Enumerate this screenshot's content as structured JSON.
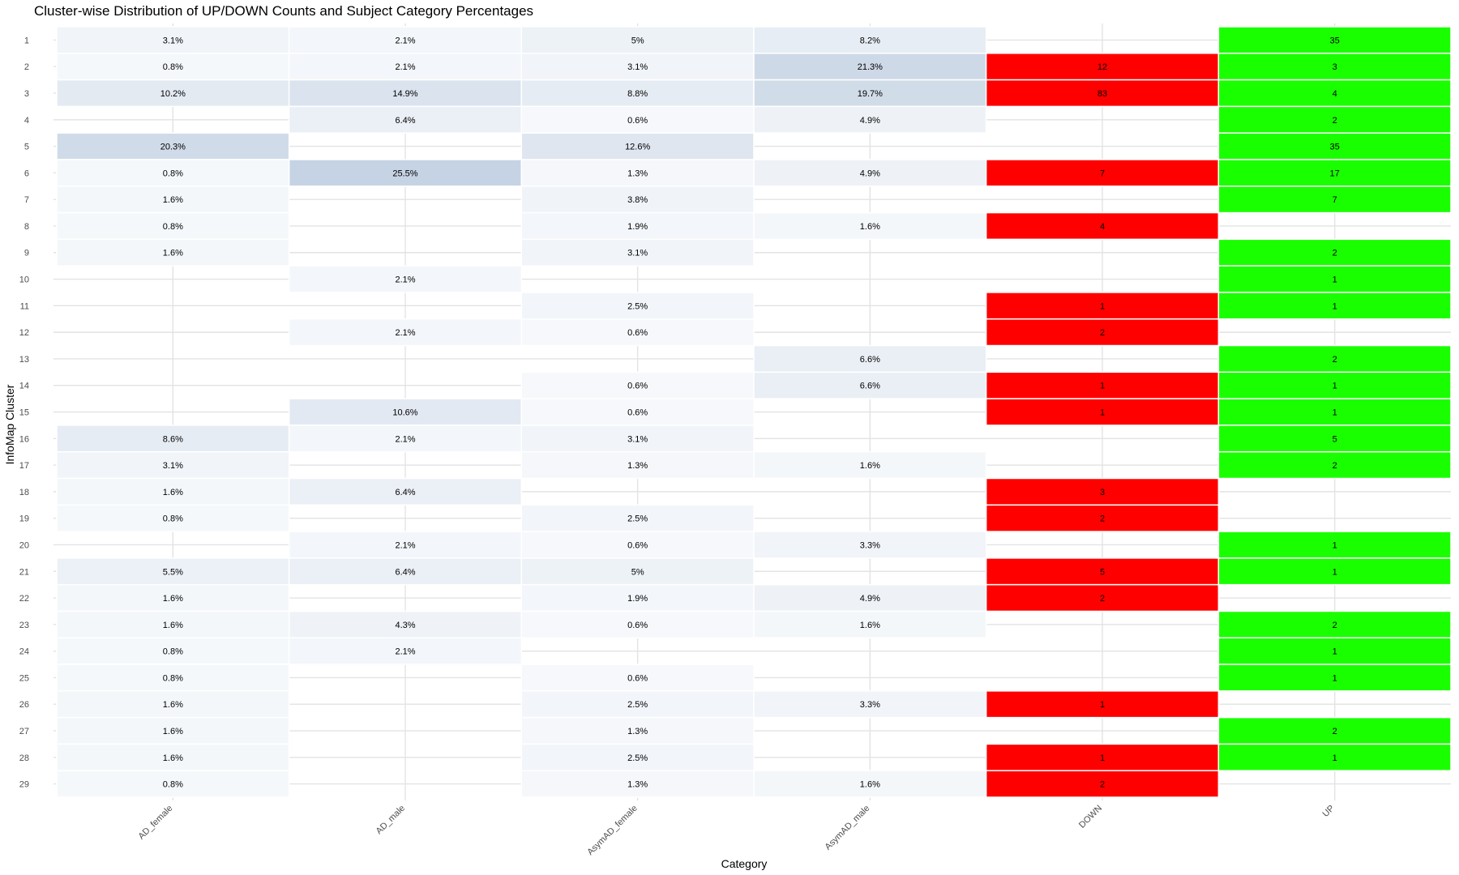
{
  "chart_data": {
    "type": "heatmap",
    "title": "Cluster-wise Distribution of UP/DOWN Counts and Subject Category Percentages",
    "xlabel": "Category",
    "ylabel": "InfoMap Cluster",
    "categories": [
      "AD_female",
      "AD_male",
      "AsymAD_female",
      "AsymAD_male",
      "DOWN",
      "UP"
    ],
    "clusters": [
      "1",
      "2",
      "3",
      "4",
      "5",
      "6",
      "7",
      "8",
      "9",
      "10",
      "11",
      "12",
      "13",
      "14",
      "15",
      "16",
      "17",
      "18",
      "19",
      "20",
      "21",
      "22",
      "23",
      "24",
      "25",
      "26",
      "27",
      "28",
      "29"
    ],
    "colors": {
      "percent_low": "#f7f9fc",
      "percent_high": "#c6d3e4",
      "down": "#ff0000",
      "up": "#1aff00",
      "grid": "#e3e3e3"
    },
    "cells": [
      {
        "cluster": "1",
        "category": "AD_female",
        "value": 3.1,
        "label": "3.1%"
      },
      {
        "cluster": "1",
        "category": "AD_male",
        "value": 2.1,
        "label": "2.1%"
      },
      {
        "cluster": "1",
        "category": "AsymAD_female",
        "value": 5,
        "label": "5%"
      },
      {
        "cluster": "1",
        "category": "AsymAD_male",
        "value": 8.2,
        "label": "8.2%"
      },
      {
        "cluster": "1",
        "category": "UP",
        "value": 35,
        "label": "35"
      },
      {
        "cluster": "2",
        "category": "AD_female",
        "value": 0.8,
        "label": "0.8%"
      },
      {
        "cluster": "2",
        "category": "AD_male",
        "value": 2.1,
        "label": "2.1%"
      },
      {
        "cluster": "2",
        "category": "AsymAD_female",
        "value": 3.1,
        "label": "3.1%"
      },
      {
        "cluster": "2",
        "category": "AsymAD_male",
        "value": 21.3,
        "label": "21.3%"
      },
      {
        "cluster": "2",
        "category": "DOWN",
        "value": 12,
        "label": "12"
      },
      {
        "cluster": "2",
        "category": "UP",
        "value": 3,
        "label": "3"
      },
      {
        "cluster": "3",
        "category": "AD_female",
        "value": 10.2,
        "label": "10.2%"
      },
      {
        "cluster": "3",
        "category": "AD_male",
        "value": 14.9,
        "label": "14.9%"
      },
      {
        "cluster": "3",
        "category": "AsymAD_female",
        "value": 8.8,
        "label": "8.8%"
      },
      {
        "cluster": "3",
        "category": "AsymAD_male",
        "value": 19.7,
        "label": "19.7%"
      },
      {
        "cluster": "3",
        "category": "DOWN",
        "value": 83,
        "label": "83"
      },
      {
        "cluster": "3",
        "category": "UP",
        "value": 4,
        "label": "4"
      },
      {
        "cluster": "4",
        "category": "AD_male",
        "value": 6.4,
        "label": "6.4%"
      },
      {
        "cluster": "4",
        "category": "AsymAD_female",
        "value": 0.6,
        "label": "0.6%"
      },
      {
        "cluster": "4",
        "category": "AsymAD_male",
        "value": 4.9,
        "label": "4.9%"
      },
      {
        "cluster": "4",
        "category": "UP",
        "value": 2,
        "label": "2"
      },
      {
        "cluster": "5",
        "category": "AD_female",
        "value": 20.3,
        "label": "20.3%"
      },
      {
        "cluster": "5",
        "category": "AsymAD_female",
        "value": 12.6,
        "label": "12.6%"
      },
      {
        "cluster": "5",
        "category": "UP",
        "value": 35,
        "label": "35"
      },
      {
        "cluster": "6",
        "category": "AD_female",
        "value": 0.8,
        "label": "0.8%"
      },
      {
        "cluster": "6",
        "category": "AD_male",
        "value": 25.5,
        "label": "25.5%"
      },
      {
        "cluster": "6",
        "category": "AsymAD_female",
        "value": 1.3,
        "label": "1.3%"
      },
      {
        "cluster": "6",
        "category": "AsymAD_male",
        "value": 4.9,
        "label": "4.9%"
      },
      {
        "cluster": "6",
        "category": "DOWN",
        "value": 7,
        "label": "7"
      },
      {
        "cluster": "6",
        "category": "UP",
        "value": 17,
        "label": "17"
      },
      {
        "cluster": "7",
        "category": "AD_female",
        "value": 1.6,
        "label": "1.6%"
      },
      {
        "cluster": "7",
        "category": "AsymAD_female",
        "value": 3.8,
        "label": "3.8%"
      },
      {
        "cluster": "7",
        "category": "UP",
        "value": 7,
        "label": "7"
      },
      {
        "cluster": "8",
        "category": "AD_female",
        "value": 0.8,
        "label": "0.8%"
      },
      {
        "cluster": "8",
        "category": "AsymAD_female",
        "value": 1.9,
        "label": "1.9%"
      },
      {
        "cluster": "8",
        "category": "AsymAD_male",
        "value": 1.6,
        "label": "1.6%"
      },
      {
        "cluster": "8",
        "category": "DOWN",
        "value": 4,
        "label": "4"
      },
      {
        "cluster": "9",
        "category": "AD_female",
        "value": 1.6,
        "label": "1.6%"
      },
      {
        "cluster": "9",
        "category": "AsymAD_female",
        "value": 3.1,
        "label": "3.1%"
      },
      {
        "cluster": "9",
        "category": "UP",
        "value": 2,
        "label": "2"
      },
      {
        "cluster": "10",
        "category": "AD_male",
        "value": 2.1,
        "label": "2.1%"
      },
      {
        "cluster": "10",
        "category": "UP",
        "value": 1,
        "label": "1"
      },
      {
        "cluster": "11",
        "category": "AsymAD_female",
        "value": 2.5,
        "label": "2.5%"
      },
      {
        "cluster": "11",
        "category": "DOWN",
        "value": 1,
        "label": "1"
      },
      {
        "cluster": "11",
        "category": "UP",
        "value": 1,
        "label": "1"
      },
      {
        "cluster": "12",
        "category": "AD_male",
        "value": 2.1,
        "label": "2.1%"
      },
      {
        "cluster": "12",
        "category": "AsymAD_female",
        "value": 0.6,
        "label": "0.6%"
      },
      {
        "cluster": "12",
        "category": "DOWN",
        "value": 2,
        "label": "2"
      },
      {
        "cluster": "13",
        "category": "AsymAD_male",
        "value": 6.6,
        "label": "6.6%"
      },
      {
        "cluster": "13",
        "category": "UP",
        "value": 2,
        "label": "2"
      },
      {
        "cluster": "14",
        "category": "AsymAD_female",
        "value": 0.6,
        "label": "0.6%"
      },
      {
        "cluster": "14",
        "category": "AsymAD_male",
        "value": 6.6,
        "label": "6.6%"
      },
      {
        "cluster": "14",
        "category": "DOWN",
        "value": 1,
        "label": "1"
      },
      {
        "cluster": "14",
        "category": "UP",
        "value": 1,
        "label": "1"
      },
      {
        "cluster": "15",
        "category": "AD_male",
        "value": 10.6,
        "label": "10.6%"
      },
      {
        "cluster": "15",
        "category": "AsymAD_female",
        "value": 0.6,
        "label": "0.6%"
      },
      {
        "cluster": "15",
        "category": "DOWN",
        "value": 1,
        "label": "1"
      },
      {
        "cluster": "15",
        "category": "UP",
        "value": 1,
        "label": "1"
      },
      {
        "cluster": "16",
        "category": "AD_female",
        "value": 8.6,
        "label": "8.6%"
      },
      {
        "cluster": "16",
        "category": "AD_male",
        "value": 2.1,
        "label": "2.1%"
      },
      {
        "cluster": "16",
        "category": "AsymAD_female",
        "value": 3.1,
        "label": "3.1%"
      },
      {
        "cluster": "16",
        "category": "UP",
        "value": 5,
        "label": "5"
      },
      {
        "cluster": "17",
        "category": "AD_female",
        "value": 3.1,
        "label": "3.1%"
      },
      {
        "cluster": "17",
        "category": "AsymAD_female",
        "value": 1.3,
        "label": "1.3%"
      },
      {
        "cluster": "17",
        "category": "AsymAD_male",
        "value": 1.6,
        "label": "1.6%"
      },
      {
        "cluster": "17",
        "category": "UP",
        "value": 2,
        "label": "2"
      },
      {
        "cluster": "18",
        "category": "AD_female",
        "value": 1.6,
        "label": "1.6%"
      },
      {
        "cluster": "18",
        "category": "AD_male",
        "value": 6.4,
        "label": "6.4%"
      },
      {
        "cluster": "18",
        "category": "DOWN",
        "value": 3,
        "label": "3"
      },
      {
        "cluster": "19",
        "category": "AD_female",
        "value": 0.8,
        "label": "0.8%"
      },
      {
        "cluster": "19",
        "category": "AsymAD_female",
        "value": 2.5,
        "label": "2.5%"
      },
      {
        "cluster": "19",
        "category": "DOWN",
        "value": 2,
        "label": "2"
      },
      {
        "cluster": "20",
        "category": "AD_male",
        "value": 2.1,
        "label": "2.1%"
      },
      {
        "cluster": "20",
        "category": "AsymAD_female",
        "value": 0.6,
        "label": "0.6%"
      },
      {
        "cluster": "20",
        "category": "AsymAD_male",
        "value": 3.3,
        "label": "3.3%"
      },
      {
        "cluster": "20",
        "category": "UP",
        "value": 1,
        "label": "1"
      },
      {
        "cluster": "21",
        "category": "AD_female",
        "value": 5.5,
        "label": "5.5%"
      },
      {
        "cluster": "21",
        "category": "AD_male",
        "value": 6.4,
        "label": "6.4%"
      },
      {
        "cluster": "21",
        "category": "AsymAD_female",
        "value": 5,
        "label": "5%"
      },
      {
        "cluster": "21",
        "category": "DOWN",
        "value": 5,
        "label": "5"
      },
      {
        "cluster": "21",
        "category": "UP",
        "value": 1,
        "label": "1"
      },
      {
        "cluster": "22",
        "category": "AD_female",
        "value": 1.6,
        "label": "1.6%"
      },
      {
        "cluster": "22",
        "category": "AsymAD_female",
        "value": 1.9,
        "label": "1.9%"
      },
      {
        "cluster": "22",
        "category": "AsymAD_male",
        "value": 4.9,
        "label": "4.9%"
      },
      {
        "cluster": "22",
        "category": "DOWN",
        "value": 2,
        "label": "2"
      },
      {
        "cluster": "23",
        "category": "AD_female",
        "value": 1.6,
        "label": "1.6%"
      },
      {
        "cluster": "23",
        "category": "AD_male",
        "value": 4.3,
        "label": "4.3%"
      },
      {
        "cluster": "23",
        "category": "AsymAD_female",
        "value": 0.6,
        "label": "0.6%"
      },
      {
        "cluster": "23",
        "category": "AsymAD_male",
        "value": 1.6,
        "label": "1.6%"
      },
      {
        "cluster": "23",
        "category": "UP",
        "value": 2,
        "label": "2"
      },
      {
        "cluster": "24",
        "category": "AD_female",
        "value": 0.8,
        "label": "0.8%"
      },
      {
        "cluster": "24",
        "category": "AD_male",
        "value": 2.1,
        "label": "2.1%"
      },
      {
        "cluster": "24",
        "category": "UP",
        "value": 1,
        "label": "1"
      },
      {
        "cluster": "25",
        "category": "AD_female",
        "value": 0.8,
        "label": "0.8%"
      },
      {
        "cluster": "25",
        "category": "AsymAD_female",
        "value": 0.6,
        "label": "0.6%"
      },
      {
        "cluster": "25",
        "category": "UP",
        "value": 1,
        "label": "1"
      },
      {
        "cluster": "26",
        "category": "AD_female",
        "value": 1.6,
        "label": "1.6%"
      },
      {
        "cluster": "26",
        "category": "AsymAD_female",
        "value": 2.5,
        "label": "2.5%"
      },
      {
        "cluster": "26",
        "category": "AsymAD_male",
        "value": 3.3,
        "label": "3.3%"
      },
      {
        "cluster": "26",
        "category": "DOWN",
        "value": 1,
        "label": "1"
      },
      {
        "cluster": "27",
        "category": "AD_female",
        "value": 1.6,
        "label": "1.6%"
      },
      {
        "cluster": "27",
        "category": "AsymAD_female",
        "value": 1.3,
        "label": "1.3%"
      },
      {
        "cluster": "27",
        "category": "UP",
        "value": 2,
        "label": "2"
      },
      {
        "cluster": "28",
        "category": "AD_female",
        "value": 1.6,
        "label": "1.6%"
      },
      {
        "cluster": "28",
        "category": "AsymAD_female",
        "value": 2.5,
        "label": "2.5%"
      },
      {
        "cluster": "28",
        "category": "DOWN",
        "value": 1,
        "label": "1"
      },
      {
        "cluster": "28",
        "category": "UP",
        "value": 1,
        "label": "1"
      },
      {
        "cluster": "29",
        "category": "AD_female",
        "value": 0.8,
        "label": "0.8%"
      },
      {
        "cluster": "29",
        "category": "AsymAD_female",
        "value": 1.3,
        "label": "1.3%"
      },
      {
        "cluster": "29",
        "category": "AsymAD_male",
        "value": 1.6,
        "label": "1.6%"
      },
      {
        "cluster": "29",
        "category": "DOWN",
        "value": 2,
        "label": "2"
      }
    ]
  }
}
